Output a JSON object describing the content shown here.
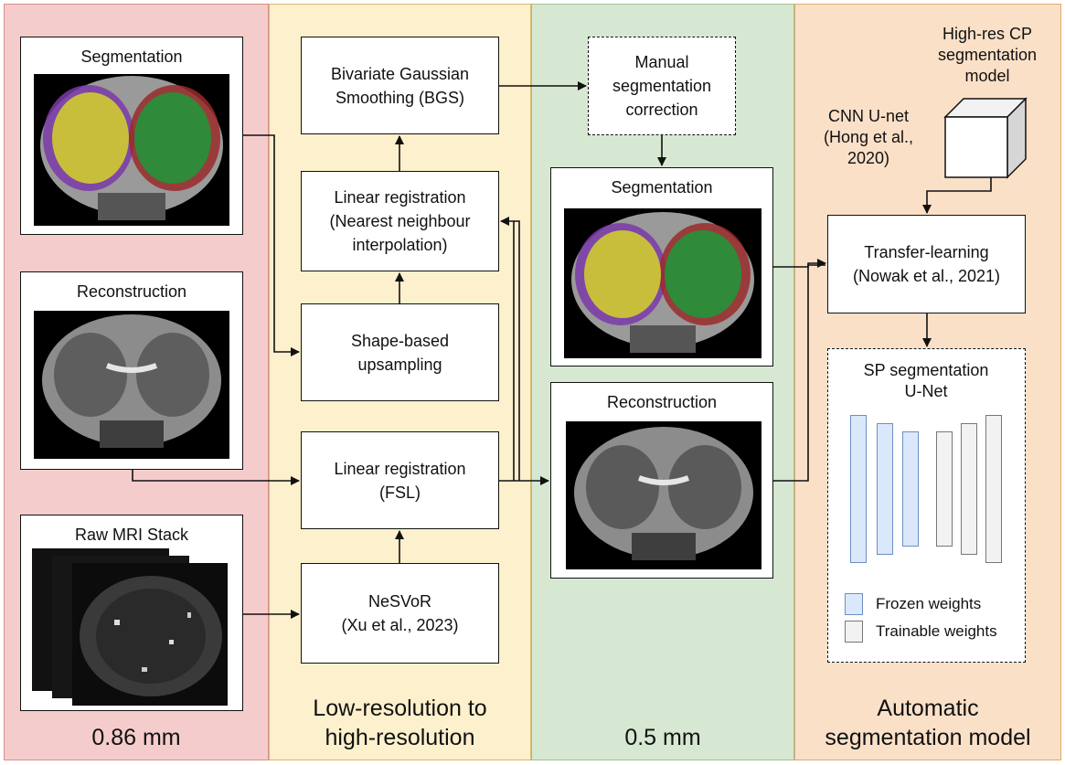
{
  "panels": [
    {
      "title": "0.86 mm",
      "color": "#f5cccc"
    },
    {
      "title": "Low-resolution to\nhigh-resolution",
      "color": "#fdf0cc"
    },
    {
      "title": "0.5 mm",
      "color": "#d6e8d2"
    },
    {
      "title": "Automatic\nsegmentation model",
      "color": "#fbe0c8"
    }
  ],
  "inputs": {
    "segmentation": "Segmentation",
    "reconstruction": "Reconstruction",
    "raw_mri": "Raw MRI Stack"
  },
  "process": {
    "bgs": "Bivariate Gaussian\nSmoothing (BGS)",
    "linreg_nn": "Linear registration\n(Nearest neighbour\ninterpolation)",
    "shape_up": "Shape-based\nupsampling",
    "linreg_fsl": "Linear registration\n(FSL)",
    "nesvor": "NeSVoR\n(Xu et al., 2023)"
  },
  "outputs": {
    "manual": "Manual\nsegmentation\ncorrection",
    "segmentation": "Segmentation",
    "reconstruction": "Reconstruction"
  },
  "model": {
    "highres": "High-res CP\nsegmentation\nmodel",
    "cnn": "CNN U-net\n(Hong et al.,\n2020)",
    "transfer": "Transfer-learning\n(Nowak et al., 2021)",
    "sp_title": "SP segmentation\nU-Net",
    "legend_frozen": "Frozen weights",
    "legend_trainable": "Trainable weights"
  },
  "colors": {
    "frozen": "#dbe8fb",
    "frozen_border": "#6d8fc4",
    "trainable": "#f2f2f2",
    "trainable_border": "#777777",
    "seg_yellow": "#c8be3c",
    "seg_green": "#2f8a3a",
    "seg_purple": "#7a3aa8",
    "seg_red": "#9a2a2a"
  }
}
